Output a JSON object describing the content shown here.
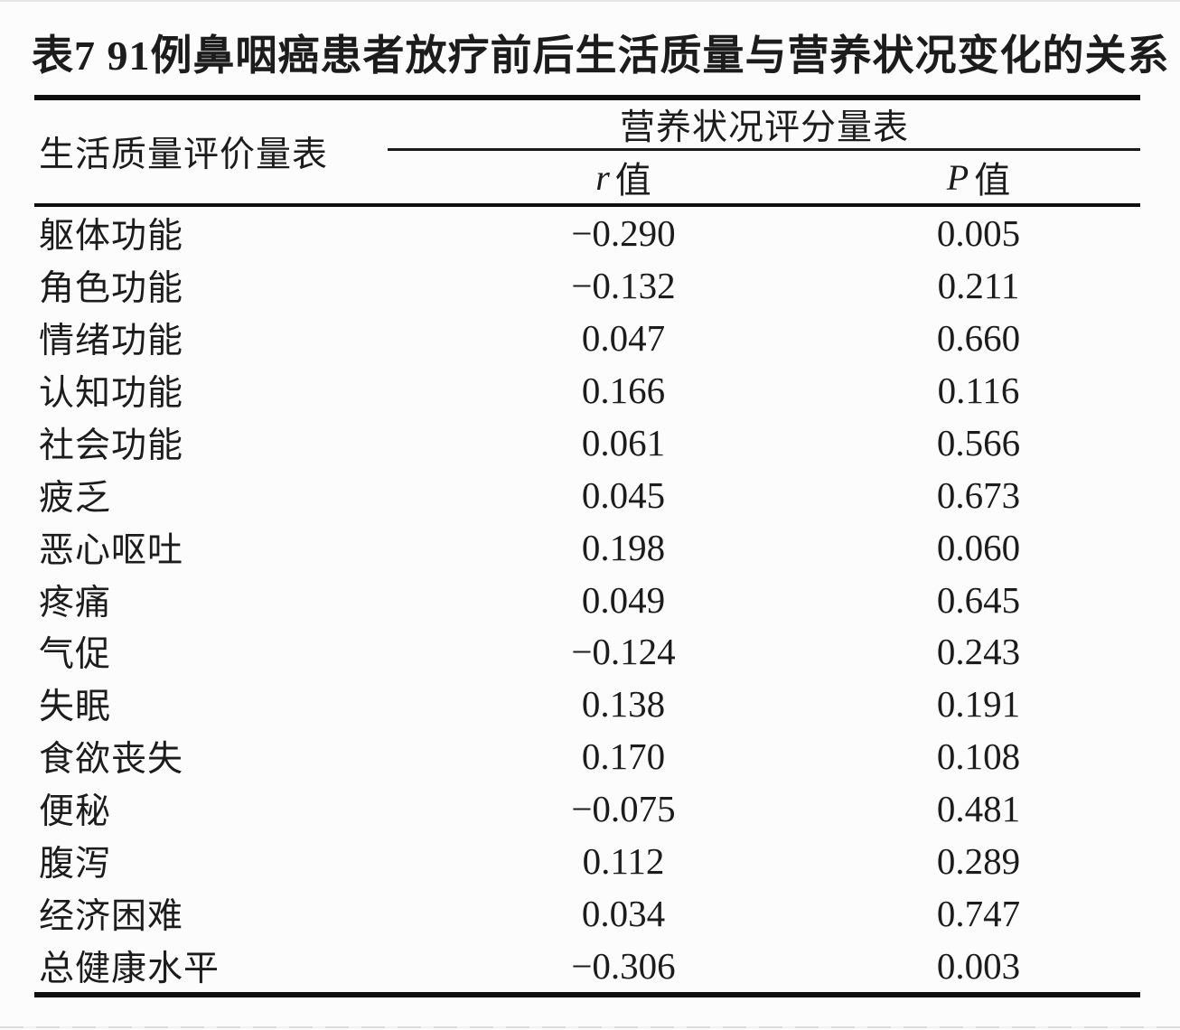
{
  "page": {
    "background": "#fdfcfd",
    "text_color": "#1c1c1c",
    "rule_color": "#0f0f0f"
  },
  "table": {
    "title": "表7 91例鼻咽癌患者放疗前后生活质量与营养状况变化的关系",
    "stub_header": "生活质量评价量表",
    "group_header": "营养状况评分量表",
    "sub_headers": {
      "r": {
        "var": "r",
        "rest": "值"
      },
      "p": {
        "var": "P",
        "rest": "值"
      }
    },
    "rows": [
      {
        "label": "躯体功能",
        "r": "−0.290",
        "p": "0.005"
      },
      {
        "label": "角色功能",
        "r": "−0.132",
        "p": "0.211"
      },
      {
        "label": "情绪功能",
        "r": "0.047",
        "p": "0.660"
      },
      {
        "label": "认知功能",
        "r": "0.166",
        "p": "0.116"
      },
      {
        "label": "社会功能",
        "r": "0.061",
        "p": "0.566"
      },
      {
        "label": "疲乏",
        "r": "0.045",
        "p": "0.673"
      },
      {
        "label": "恶心呕吐",
        "r": "0.198",
        "p": "0.060"
      },
      {
        "label": "疼痛",
        "r": "0.049",
        "p": "0.645"
      },
      {
        "label": "气促",
        "r": "−0.124",
        "p": "0.243"
      },
      {
        "label": "失眠",
        "r": "0.138",
        "p": "0.191"
      },
      {
        "label": "食欲丧失",
        "r": "0.170",
        "p": "0.108"
      },
      {
        "label": "便秘",
        "r": "−0.075",
        "p": "0.481"
      },
      {
        "label": "腹泻",
        "r": "0.112",
        "p": "0.289"
      },
      {
        "label": "经济困难",
        "r": "0.034",
        "p": "0.747"
      },
      {
        "label": "总健康水平",
        "r": "−0.306",
        "p": "0.003"
      }
    ]
  }
}
